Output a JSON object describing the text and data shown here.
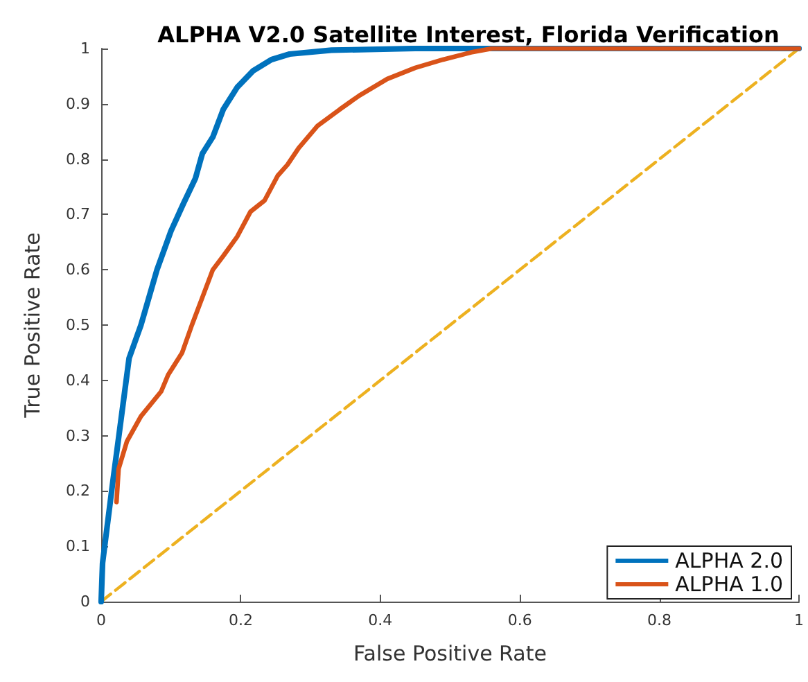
{
  "chart_data": {
    "type": "line",
    "title": "ALPHA V2.0 Satellite Interest, Florida Verification",
    "xlabel": "False Positive Rate",
    "ylabel": "True Positive Rate",
    "series": [
      {
        "name": "ALPHA 2.0",
        "color": "#0072bd",
        "x": [
          0,
          0.002,
          0.016,
          0.04,
          0.057,
          0.08,
          0.1,
          0.118,
          0.135,
          0.145,
          0.16,
          0.175,
          0.195,
          0.218,
          0.244,
          0.27,
          0.33,
          0.45,
          1
        ],
        "values": [
          0,
          0.07,
          0.21,
          0.44,
          0.5,
          0.6,
          0.67,
          0.72,
          0.765,
          0.81,
          0.84,
          0.89,
          0.93,
          0.96,
          0.98,
          0.99,
          0.997,
          1,
          1
        ]
      },
      {
        "name": "ALPHA 1.0",
        "color": "#d95319",
        "x": [
          0.022,
          0.025,
          0.037,
          0.057,
          0.086,
          0.096,
          0.116,
          0.13,
          0.145,
          0.16,
          0.175,
          0.195,
          0.214,
          0.234,
          0.253,
          0.267,
          0.283,
          0.31,
          0.342,
          0.37,
          0.41,
          0.45,
          0.49,
          0.53,
          0.56,
          1
        ],
        "values": [
          0.18,
          0.24,
          0.29,
          0.335,
          0.38,
          0.41,
          0.45,
          0.5,
          0.55,
          0.6,
          0.625,
          0.66,
          0.705,
          0.725,
          0.77,
          0.79,
          0.82,
          0.86,
          0.89,
          0.915,
          0.945,
          0.965,
          0.98,
          0.993,
          1,
          1
        ]
      },
      {
        "type": "line",
        "color": "#edb120",
        "line_style": "dashed",
        "x": [
          0,
          1
        ],
        "values": [
          0,
          1
        ]
      }
    ],
    "xlim": [
      0,
      1
    ],
    "ylim": [
      0,
      1
    ],
    "xticks": [
      0,
      0.2,
      0.4,
      0.6,
      0.8,
      1
    ],
    "yticks": [
      0,
      0.1,
      0.2,
      0.3,
      0.4,
      0.5,
      0.6,
      0.7,
      0.8,
      0.9,
      1
    ],
    "grid": false,
    "legend": "bottom right",
    "marker": "none",
    "line_style": "solid"
  }
}
